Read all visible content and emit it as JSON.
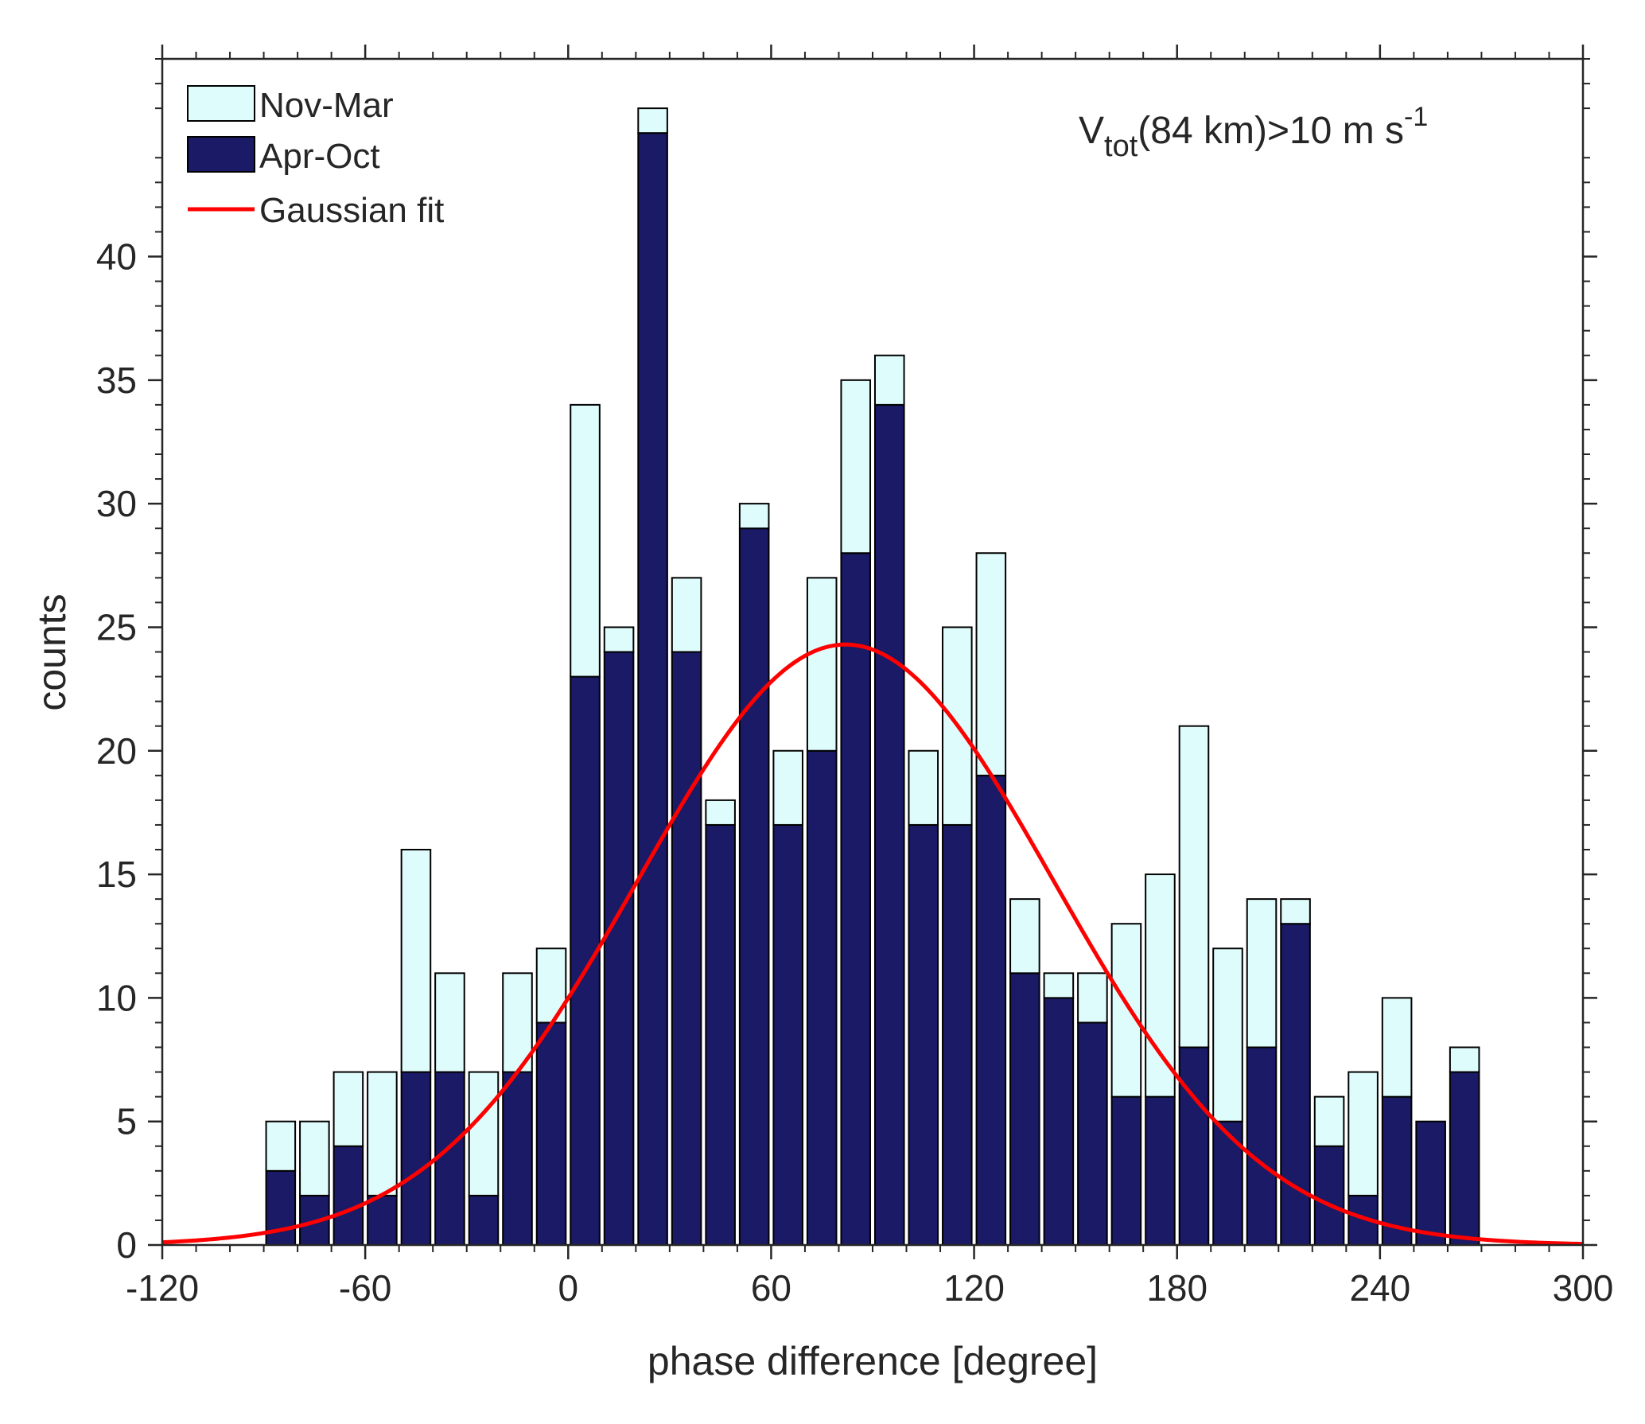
{
  "chart_data": {
    "type": "bar",
    "stacked": true,
    "xlabel": "phase difference [degree]",
    "ylabel": "counts",
    "xlim": [
      -120,
      300
    ],
    "ylim": [
      0,
      48
    ],
    "xticks": [
      "-120",
      "-60",
      "0",
      "60",
      "120",
      "180",
      "240",
      "300"
    ],
    "xtick_values": [
      -120,
      -60,
      0,
      60,
      120,
      180,
      240,
      300
    ],
    "yticks": [
      "0",
      "5",
      "10",
      "15",
      "20",
      "25",
      "30",
      "35",
      "40"
    ],
    "ytick_values": [
      0,
      5,
      10,
      15,
      20,
      25,
      30,
      35,
      40
    ],
    "annotation": {
      "base": "V",
      "sub": "tot",
      "rest": "(84 km)>10 m s",
      "sup": "-1"
    },
    "bin_width": 10,
    "bin_centers": [
      -85,
      -75,
      -65,
      -55,
      -45,
      -35,
      -25,
      -15,
      -5,
      5,
      15,
      25,
      35,
      45,
      55,
      65,
      75,
      85,
      95,
      105,
      115,
      125,
      135,
      145,
      155,
      165,
      175,
      185,
      195,
      205,
      215,
      225,
      235,
      245,
      255,
      265
    ],
    "series": [
      {
        "name": "Apr-Oct",
        "color": "#1a1a66",
        "values": [
          3,
          2,
          4,
          2,
          7,
          7,
          2,
          7,
          9,
          23,
          24,
          45,
          24,
          17,
          29,
          17,
          20,
          28,
          34,
          17,
          17,
          19,
          11,
          10,
          9,
          6,
          6,
          8,
          5,
          8,
          13,
          4,
          2,
          6,
          5,
          7
        ]
      },
      {
        "name": "Nov-Mar",
        "color": "#dffcfc",
        "values": [
          2,
          3,
          3,
          5,
          9,
          4,
          5,
          4,
          3,
          11,
          1,
          1,
          3,
          1,
          1,
          3,
          7,
          7,
          2,
          3,
          8,
          9,
          3,
          1,
          2,
          7,
          9,
          13,
          7,
          6,
          1,
          2,
          5,
          4,
          0,
          1
        ]
      }
    ],
    "fit": {
      "name": "Gaussian fit",
      "color": "#ff0000",
      "amplitude": 24.3,
      "mean": 82,
      "sigma": 61.5
    },
    "legend": [
      {
        "label": "Nov-Mar",
        "kind": "patch",
        "color": "#dffcfc"
      },
      {
        "label": "Apr-Oct",
        "kind": "patch",
        "color": "#1a1a66"
      },
      {
        "label": "Gaussian fit",
        "kind": "line",
        "color": "#ff0000"
      }
    ],
    "legend_position": "top-left"
  }
}
